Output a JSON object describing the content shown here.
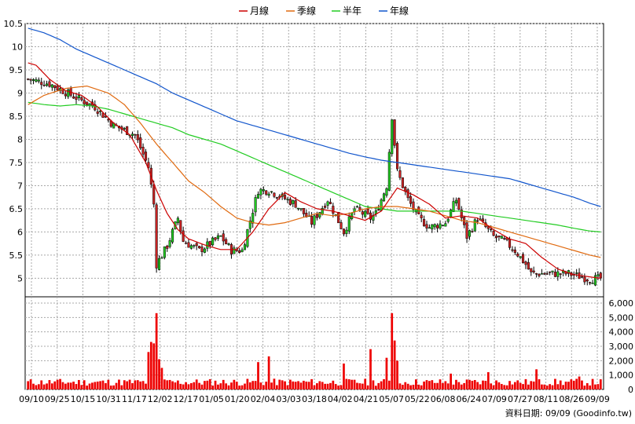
{
  "chart_data": {
    "type": "candlestick",
    "legend": {
      "placement": "top-center",
      "items": [
        {
          "name": "月線",
          "color": "#cc0000"
        },
        {
          "name": "季線",
          "color": "#e06a10"
        },
        {
          "name": "半年",
          "color": "#22cc22"
        },
        {
          "name": "年線",
          "color": "#1155cc"
        }
      ]
    },
    "price_axis": {
      "ticks": [
        "10.5",
        "10",
        "9.5",
        "9",
        "8.5",
        "8",
        "7.5",
        "7",
        "6.5",
        "6",
        "5.5",
        "5"
      ],
      "ylim": [
        4.6,
        10.5
      ]
    },
    "volume_axis": {
      "ticks": [
        "6,000",
        "5,000",
        "4,000",
        "3,000",
        "2,000",
        "1,000",
        "0"
      ],
      "ylim": [
        0,
        6000
      ]
    },
    "x_labels": [
      "09/10",
      "09/25",
      "10/15",
      "10/31",
      "11/17",
      "12/02",
      "12/17",
      "01/05",
      "01/20",
      "02/04",
      "03/03",
      "03/18",
      "04/02",
      "04/21",
      "05/07",
      "05/22",
      "06/08",
      "06/24",
      "07/09",
      "07/27",
      "08/11",
      "08/26",
      "09/09"
    ],
    "grid": true,
    "up_color": "#22cc22",
    "down_color": "#cc2222",
    "close_anchors": [
      [
        0,
        9.3
      ],
      [
        8,
        9.2
      ],
      [
        18,
        8.9
      ],
      [
        25,
        8.7
      ],
      [
        32,
        8.3
      ],
      [
        40,
        8.1
      ],
      [
        45,
        7.4
      ],
      [
        47,
        6.6
      ],
      [
        48,
        5.3
      ],
      [
        52,
        5.7
      ],
      [
        56,
        6.3
      ],
      [
        58,
        5.8
      ],
      [
        64,
        5.6
      ],
      [
        72,
        5.9
      ],
      [
        76,
        5.6
      ],
      [
        80,
        5.6
      ],
      [
        86,
        6.9
      ],
      [
        90,
        6.9
      ],
      [
        100,
        6.6
      ],
      [
        106,
        6.2
      ],
      [
        112,
        6.7
      ],
      [
        118,
        6.0
      ],
      [
        122,
        6.5
      ],
      [
        128,
        6.3
      ],
      [
        130,
        6.4
      ],
      [
        134,
        7.0
      ],
      [
        136,
        8.5
      ],
      [
        138,
        7.3
      ],
      [
        142,
        6.7
      ],
      [
        146,
        6.3
      ],
      [
        150,
        6.1
      ],
      [
        156,
        6.2
      ],
      [
        160,
        6.7
      ],
      [
        164,
        5.9
      ],
      [
        168,
        6.3
      ],
      [
        174,
        5.9
      ],
      [
        178,
        5.8
      ],
      [
        182,
        5.6
      ],
      [
        186,
        5.3
      ],
      [
        188,
        5.1
      ],
      [
        196,
        5.1
      ],
      [
        202,
        5.1
      ],
      [
        210,
        4.98
      ],
      [
        214,
        5.0
      ]
    ],
    "ma_month": [
      [
        0,
        9.65
      ],
      [
        3,
        9.6
      ],
      [
        8,
        9.3
      ],
      [
        14,
        9.05
      ],
      [
        20,
        8.95
      ],
      [
        26,
        8.7
      ],
      [
        32,
        8.35
      ],
      [
        38,
        8.1
      ],
      [
        44,
        7.5
      ],
      [
        48,
        6.9
      ],
      [
        52,
        6.4
      ],
      [
        56,
        6.05
      ],
      [
        60,
        5.85
      ],
      [
        66,
        5.72
      ],
      [
        72,
        5.62
      ],
      [
        78,
        5.62
      ],
      [
        84,
        6.0
      ],
      [
        90,
        6.5
      ],
      [
        96,
        6.85
      ],
      [
        102,
        6.65
      ],
      [
        108,
        6.5
      ],
      [
        114,
        6.45
      ],
      [
        120,
        6.35
      ],
      [
        126,
        6.25
      ],
      [
        132,
        6.45
      ],
      [
        138,
        6.95
      ],
      [
        144,
        6.8
      ],
      [
        150,
        6.6
      ],
      [
        156,
        6.3
      ],
      [
        162,
        6.35
      ],
      [
        168,
        6.3
      ],
      [
        174,
        6.05
      ],
      [
        180,
        5.85
      ],
      [
        186,
        5.75
      ],
      [
        192,
        5.45
      ],
      [
        198,
        5.2
      ],
      [
        204,
        5.08
      ],
      [
        210,
        5.03
      ],
      [
        214,
        5.0
      ]
    ],
    "ma_quarter": [
      [
        0,
        8.75
      ],
      [
        6,
        8.95
      ],
      [
        14,
        9.1
      ],
      [
        22,
        9.15
      ],
      [
        30,
        9.0
      ],
      [
        36,
        8.75
      ],
      [
        42,
        8.35
      ],
      [
        48,
        7.9
      ],
      [
        54,
        7.5
      ],
      [
        60,
        7.1
      ],
      [
        66,
        6.85
      ],
      [
        72,
        6.55
      ],
      [
        78,
        6.3
      ],
      [
        84,
        6.2
      ],
      [
        90,
        6.15
      ],
      [
        96,
        6.2
      ],
      [
        102,
        6.3
      ],
      [
        108,
        6.4
      ],
      [
        114,
        6.35
      ],
      [
        120,
        6.4
      ],
      [
        126,
        6.5
      ],
      [
        132,
        6.55
      ],
      [
        138,
        6.55
      ],
      [
        144,
        6.5
      ],
      [
        150,
        6.45
      ],
      [
        156,
        6.35
      ],
      [
        162,
        6.25
      ],
      [
        168,
        6.2
      ],
      [
        174,
        6.1
      ],
      [
        180,
        6.0
      ],
      [
        186,
        5.9
      ],
      [
        192,
        5.8
      ],
      [
        198,
        5.7
      ],
      [
        204,
        5.6
      ],
      [
        210,
        5.5
      ],
      [
        214,
        5.45
      ]
    ],
    "ma_half": [
      [
        0,
        8.8
      ],
      [
        6,
        8.75
      ],
      [
        12,
        8.72
      ],
      [
        18,
        8.75
      ],
      [
        24,
        8.72
      ],
      [
        30,
        8.65
      ],
      [
        36,
        8.55
      ],
      [
        42,
        8.45
      ],
      [
        48,
        8.35
      ],
      [
        54,
        8.25
      ],
      [
        60,
        8.1
      ],
      [
        66,
        8.0
      ],
      [
        72,
        7.9
      ],
      [
        78,
        7.75
      ],
      [
        84,
        7.6
      ],
      [
        90,
        7.45
      ],
      [
        96,
        7.3
      ],
      [
        102,
        7.15
      ],
      [
        108,
        7.0
      ],
      [
        114,
        6.85
      ],
      [
        120,
        6.7
      ],
      [
        126,
        6.55
      ],
      [
        132,
        6.5
      ],
      [
        138,
        6.45
      ],
      [
        144,
        6.45
      ],
      [
        150,
        6.45
      ],
      [
        156,
        6.45
      ],
      [
        162,
        6.45
      ],
      [
        168,
        6.4
      ],
      [
        174,
        6.35
      ],
      [
        180,
        6.3
      ],
      [
        186,
        6.25
      ],
      [
        192,
        6.2
      ],
      [
        198,
        6.15
      ],
      [
        204,
        6.08
      ],
      [
        210,
        6.02
      ],
      [
        214,
        6.0
      ]
    ],
    "ma_year": [
      [
        0,
        10.4
      ],
      [
        6,
        10.3
      ],
      [
        12,
        10.15
      ],
      [
        18,
        9.95
      ],
      [
        24,
        9.8
      ],
      [
        30,
        9.65
      ],
      [
        36,
        9.5
      ],
      [
        42,
        9.35
      ],
      [
        48,
        9.2
      ],
      [
        54,
        9.0
      ],
      [
        60,
        8.85
      ],
      [
        66,
        8.7
      ],
      [
        72,
        8.55
      ],
      [
        78,
        8.4
      ],
      [
        84,
        8.3
      ],
      [
        90,
        8.2
      ],
      [
        96,
        8.1
      ],
      [
        102,
        8.0
      ],
      [
        108,
        7.9
      ],
      [
        114,
        7.8
      ],
      [
        120,
        7.7
      ],
      [
        126,
        7.62
      ],
      [
        132,
        7.55
      ],
      [
        138,
        7.5
      ],
      [
        144,
        7.45
      ],
      [
        150,
        7.4
      ],
      [
        156,
        7.35
      ],
      [
        162,
        7.3
      ],
      [
        168,
        7.25
      ],
      [
        174,
        7.2
      ],
      [
        180,
        7.15
      ],
      [
        186,
        7.05
      ],
      [
        192,
        6.95
      ],
      [
        198,
        6.85
      ],
      [
        204,
        6.75
      ],
      [
        210,
        6.62
      ],
      [
        214,
        6.55
      ]
    ],
    "volume_spikes": [
      [
        45,
        2600
      ],
      [
        46,
        3300
      ],
      [
        47,
        3200
      ],
      [
        48,
        5300
      ],
      [
        49,
        2100
      ],
      [
        50,
        1500
      ],
      [
        86,
        1900
      ],
      [
        90,
        2300
      ],
      [
        118,
        1800
      ],
      [
        128,
        2800
      ],
      [
        134,
        2200
      ],
      [
        136,
        5300
      ],
      [
        137,
        3400
      ],
      [
        138,
        2000
      ],
      [
        158,
        1100
      ],
      [
        172,
        1200
      ],
      [
        190,
        1400
      ],
      [
        206,
        900
      ]
    ],
    "source": "資料日期: 09/09 (Goodinfo.tw)"
  }
}
